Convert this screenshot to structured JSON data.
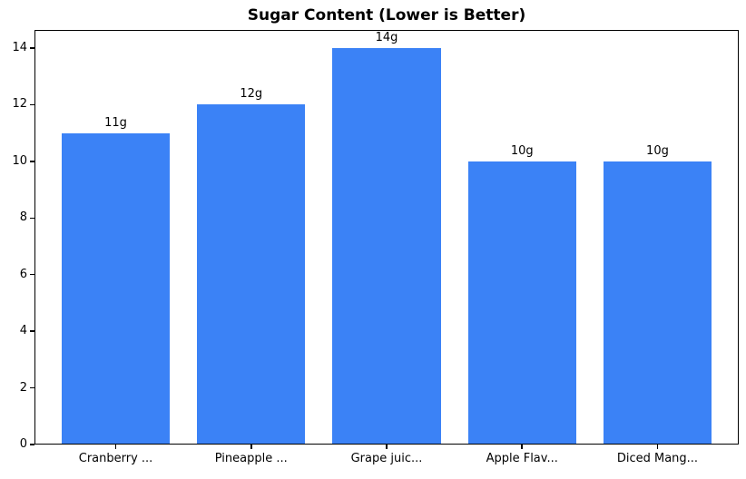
{
  "figure": {
    "background": "#ffffff"
  },
  "chart_data": {
    "type": "bar",
    "title": "Sugar Content (Lower is Better)",
    "categories": [
      "Cranberry ...",
      "Pineapple ...",
      "Grape juic...",
      "Apple Flav...",
      "Diced Mang..."
    ],
    "values": [
      11,
      12,
      14,
      10,
      10
    ],
    "value_labels": [
      "11g",
      "12g",
      "14g",
      "10g",
      "10g"
    ],
    "yticks": [
      0,
      2,
      4,
      6,
      8,
      10,
      12,
      14
    ],
    "ytick_labels": [
      "0",
      "2",
      "4",
      "6",
      "8",
      "10",
      "12",
      "14"
    ],
    "ylim": [
      0,
      14.64
    ],
    "xlim": [
      -0.6,
      4.6
    ],
    "bar_width": 0.8,
    "bar_color": "#3b82f6",
    "axis_color": "#000000",
    "text_color": "#000000",
    "grid": false,
    "legend": false,
    "xlabel": "",
    "ylabel": ""
  }
}
